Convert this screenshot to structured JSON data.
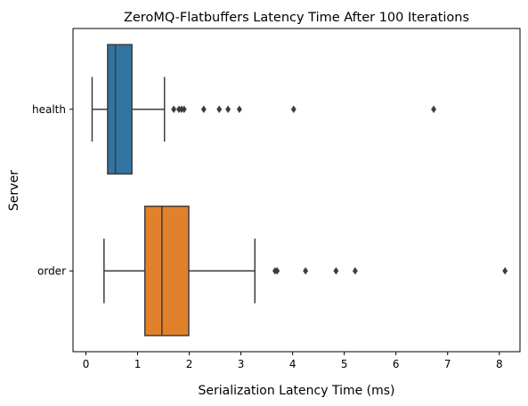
{
  "chart_data": {
    "type": "box",
    "orientation": "horizontal",
    "title": "ZeroMQ-Flatbuffers Latency Time After 100 Iterations",
    "xlabel": "Serialization Latency Time (ms)",
    "ylabel": "Server",
    "xlim": [
      -0.25,
      8.4
    ],
    "xticks": [
      0,
      1,
      2,
      3,
      4,
      5,
      6,
      7,
      8
    ],
    "xtick_labels": [
      "0",
      "1",
      "2",
      "3",
      "4",
      "5",
      "6",
      "7",
      "8"
    ],
    "grid": false,
    "categories": [
      "health",
      "order"
    ],
    "series": [
      {
        "category": "health",
        "color": "#3274a1",
        "whisker_low": 0.12,
        "q1": 0.42,
        "median": 0.57,
        "q3": 0.89,
        "whisker_high": 1.52,
        "outliers": [
          1.7,
          1.8,
          1.85,
          1.9,
          2.28,
          2.58,
          2.75,
          2.97,
          4.02,
          6.73
        ]
      },
      {
        "category": "order",
        "color": "#e1812c",
        "whisker_low": 0.35,
        "q1": 1.14,
        "median": 1.47,
        "q3": 1.99,
        "whisker_high": 3.27,
        "outliers": [
          3.66,
          3.7,
          4.25,
          4.84,
          5.21,
          8.11
        ]
      }
    ]
  }
}
